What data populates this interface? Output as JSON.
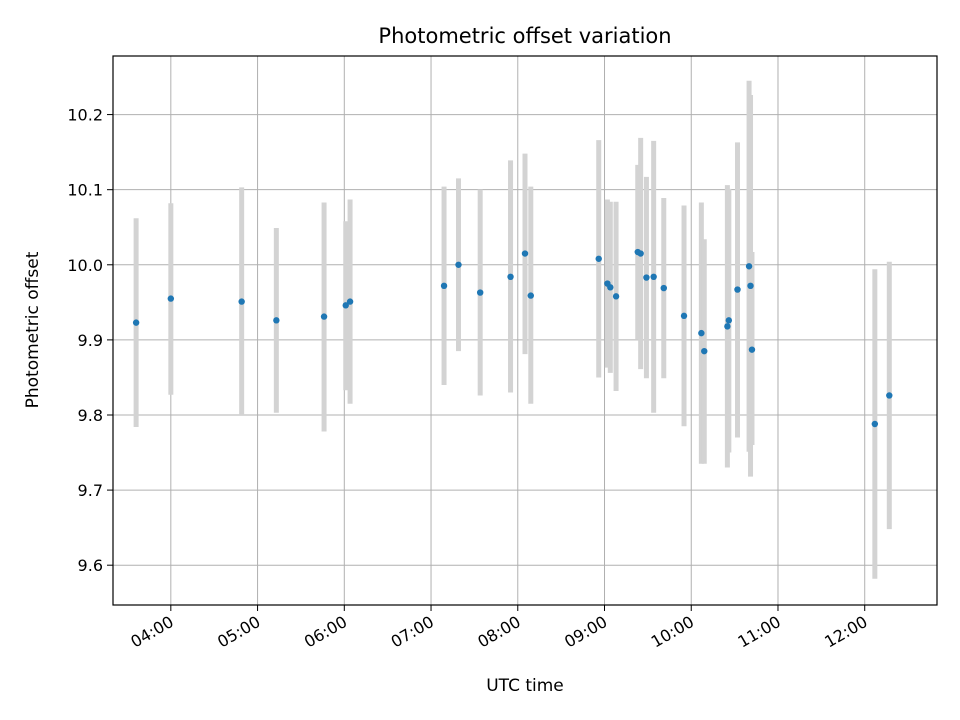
{
  "chart_data": {
    "type": "scatter",
    "title": "Photometric offset variation",
    "xlabel": "UTC time",
    "ylabel": "Photometric offset",
    "x_ticks": [
      "04:00",
      "05:00",
      "06:00",
      "07:00",
      "08:00",
      "09:00",
      "10:00",
      "11:00",
      "12:00"
    ],
    "y_ticks": [
      "9.6",
      "9.7",
      "9.8",
      "9.9",
      "10.0",
      "10.1",
      "10.2"
    ],
    "xlim": [
      "03:20",
      "12:50"
    ],
    "ylim": [
      9.547,
      10.278
    ],
    "grid": true,
    "point_color": "#1f77b4",
    "errorbar_color": "#d3d3d3",
    "points": [
      {
        "t": "03:36",
        "y": 9.923,
        "lo": 9.784,
        "hi": 10.062
      },
      {
        "t": "04:00",
        "y": 9.955,
        "lo": 9.827,
        "hi": 10.082
      },
      {
        "t": "04:49",
        "y": 9.951,
        "lo": 9.8,
        "hi": 10.103
      },
      {
        "t": "05:13",
        "y": 9.926,
        "lo": 9.803,
        "hi": 10.049
      },
      {
        "t": "05:46",
        "y": 9.931,
        "lo": 9.778,
        "hi": 10.083
      },
      {
        "t": "06:01",
        "y": 9.946,
        "lo": 9.833,
        "hi": 10.058
      },
      {
        "t": "06:04",
        "y": 9.951,
        "lo": 9.815,
        "hi": 10.087
      },
      {
        "t": "07:09",
        "y": 9.972,
        "lo": 9.84,
        "hi": 10.104
      },
      {
        "t": "07:19",
        "y": 10.0,
        "lo": 9.885,
        "hi": 10.115
      },
      {
        "t": "07:34",
        "y": 9.963,
        "lo": 9.826,
        "hi": 10.1
      },
      {
        "t": "07:55",
        "y": 9.984,
        "lo": 9.83,
        "hi": 10.139
      },
      {
        "t": "08:05",
        "y": 10.015,
        "lo": 9.881,
        "hi": 10.148
      },
      {
        "t": "08:09",
        "y": 9.959,
        "lo": 9.815,
        "hi": 10.104
      },
      {
        "t": "08:56",
        "y": 10.008,
        "lo": 9.85,
        "hi": 10.166
      },
      {
        "t": "09:02",
        "y": 9.975,
        "lo": 9.863,
        "hi": 10.087
      },
      {
        "t": "09:04",
        "y": 9.97,
        "lo": 9.856,
        "hi": 10.084
      },
      {
        "t": "09:08",
        "y": 9.958,
        "lo": 9.832,
        "hi": 10.084
      },
      {
        "t": "09:23",
        "y": 10.017,
        "lo": 9.9,
        "hi": 10.133
      },
      {
        "t": "09:25",
        "y": 10.015,
        "lo": 9.861,
        "hi": 10.169
      },
      {
        "t": "09:29",
        "y": 9.983,
        "lo": 9.849,
        "hi": 10.117
      },
      {
        "t": "09:34",
        "y": 9.984,
        "lo": 9.803,
        "hi": 10.165
      },
      {
        "t": "09:41",
        "y": 9.969,
        "lo": 9.849,
        "hi": 10.089
      },
      {
        "t": "09:55",
        "y": 9.932,
        "lo": 9.785,
        "hi": 10.079
      },
      {
        "t": "10:07",
        "y": 9.909,
        "lo": 9.735,
        "hi": 10.083
      },
      {
        "t": "10:09",
        "y": 9.885,
        "lo": 9.735,
        "hi": 10.034
      },
      {
        "t": "10:25",
        "y": 9.918,
        "lo": 9.73,
        "hi": 10.106
      },
      {
        "t": "10:26",
        "y": 9.926,
        "lo": 9.75,
        "hi": 10.101
      },
      {
        "t": "10:32",
        "y": 9.967,
        "lo": 9.77,
        "hi": 10.163
      },
      {
        "t": "10:40",
        "y": 9.998,
        "lo": 9.751,
        "hi": 10.245
      },
      {
        "t": "10:41",
        "y": 9.972,
        "lo": 9.718,
        "hi": 10.226
      },
      {
        "t": "10:42",
        "y": 9.887,
        "lo": 9.76,
        "hi": 10.017
      },
      {
        "t": "12:07",
        "y": 9.788,
        "lo": 9.582,
        "hi": 9.994
      },
      {
        "t": "12:17",
        "y": 9.826,
        "lo": 9.648,
        "hi": 10.004
      }
    ]
  }
}
